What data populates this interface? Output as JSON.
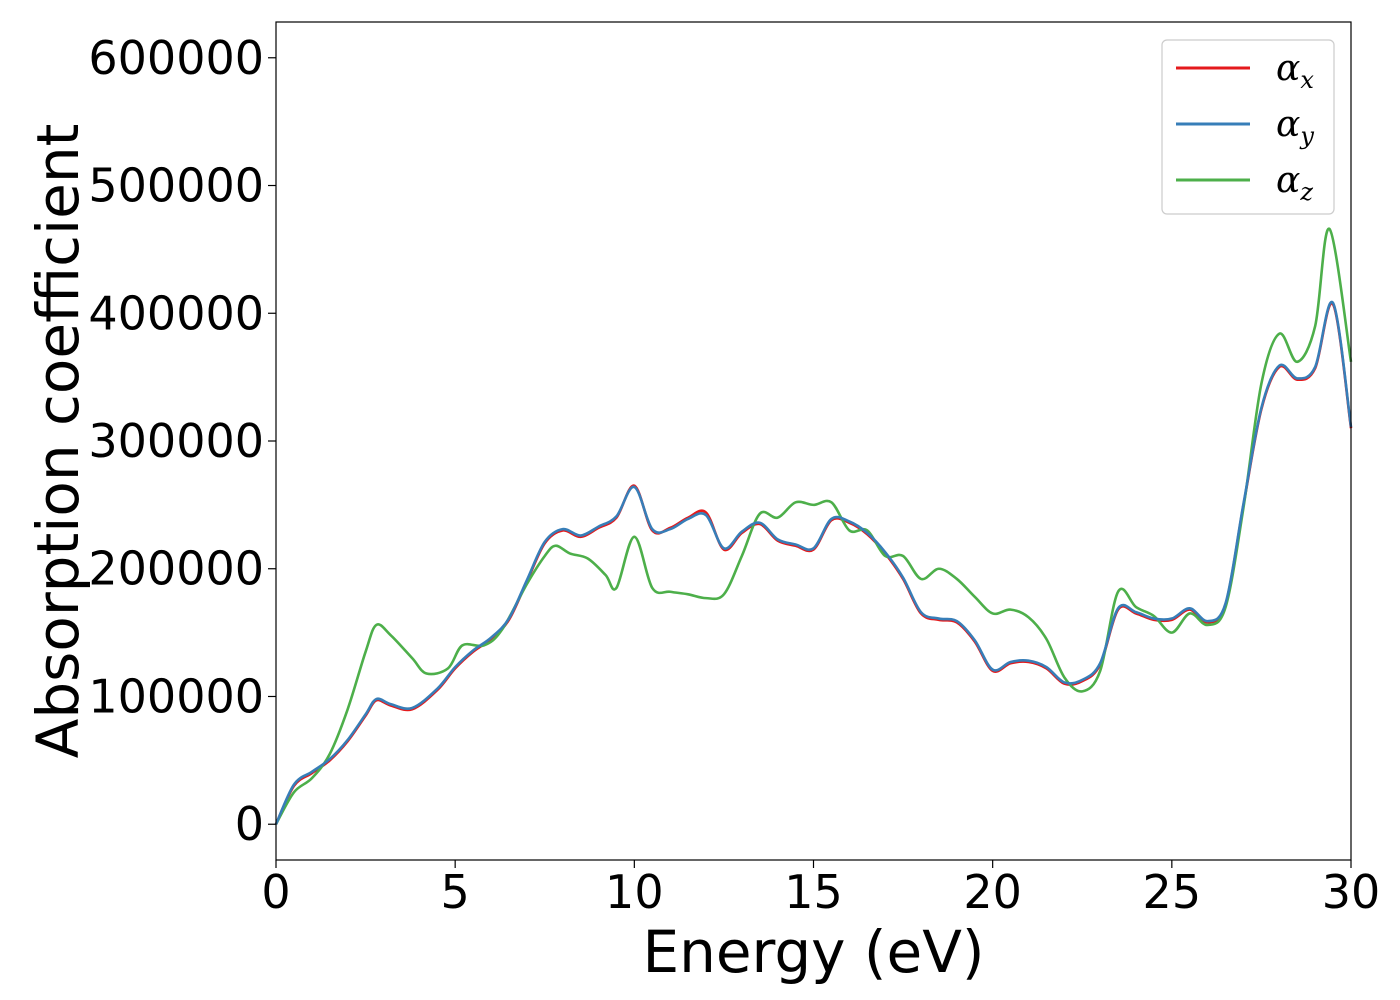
{
  "chart_data": {
    "type": "line",
    "title": "",
    "xlabel": "Energy (eV)",
    "ylabel": "Absorption coefficient",
    "xlim": [
      0,
      30
    ],
    "ylim": [
      -28000,
      628000
    ],
    "xticks": [
      0,
      5,
      10,
      15,
      20,
      25,
      30
    ],
    "yticks": [
      0,
      100000,
      200000,
      300000,
      400000,
      500000,
      600000
    ],
    "grid": false,
    "legend_position": "top-right",
    "series": [
      {
        "name": "α_x",
        "color": "#e41a1c",
        "x": [
          0,
          0.5,
          1,
          1.5,
          2,
          2.5,
          2.8,
          3.2,
          3.8,
          4.5,
          5,
          5.5,
          6,
          6.5,
          7,
          7.5,
          8,
          8.5,
          9,
          9.5,
          10,
          10.5,
          11,
          11.5,
          12,
          12.5,
          13,
          13.5,
          14,
          14.5,
          15,
          15.5,
          16,
          16.5,
          17,
          17.5,
          18,
          18.5,
          19,
          19.5,
          20,
          20.5,
          21,
          21.5,
          22,
          22.5,
          23,
          23.5,
          24,
          24.5,
          25,
          25.5,
          26,
          26.5,
          27,
          27.5,
          28,
          28.5,
          29,
          29.5,
          30
        ],
        "y": [
          0,
          30000,
          40000,
          50000,
          65000,
          85000,
          97000,
          93000,
          90000,
          105000,
          122000,
          135000,
          145000,
          160000,
          190000,
          220000,
          230000,
          225000,
          232000,
          240000,
          265000,
          230000,
          232000,
          240000,
          244000,
          215000,
          228000,
          235000,
          222000,
          218000,
          215000,
          238000,
          236000,
          227000,
          212000,
          192000,
          165000,
          160000,
          158000,
          143000,
          120000,
          126000,
          127000,
          122000,
          110000,
          112000,
          125000,
          168000,
          165000,
          160000,
          160000,
          168000,
          158000,
          172000,
          250000,
          325000,
          358000,
          348000,
          357000,
          407000,
          310000
        ]
      },
      {
        "name": "α_y",
        "color": "#377eb8",
        "x": [
          0,
          0.5,
          1,
          1.5,
          2,
          2.5,
          2.8,
          3.2,
          3.8,
          4.5,
          5,
          5.5,
          6,
          6.5,
          7,
          7.5,
          8,
          8.5,
          9,
          9.5,
          10,
          10.5,
          11,
          11.5,
          12,
          12.5,
          13,
          13.5,
          14,
          14.5,
          15,
          15.5,
          16,
          16.5,
          17,
          17.5,
          18,
          18.5,
          19,
          19.5,
          20,
          20.5,
          21,
          21.5,
          22,
          22.5,
          23,
          23.5,
          24,
          24.5,
          25,
          25.5,
          26,
          26.5,
          27,
          27.5,
          28,
          28.5,
          29,
          29.5,
          30
        ],
        "y": [
          0,
          31000,
          41000,
          51000,
          66000,
          86000,
          98000,
          94000,
          91000,
          106000,
          123000,
          136000,
          146000,
          161000,
          191000,
          221000,
          231000,
          226000,
          233000,
          241000,
          264000,
          231000,
          231000,
          239000,
          242000,
          216000,
          229000,
          236000,
          223000,
          219000,
          216000,
          239000,
          237000,
          228000,
          213000,
          193000,
          166000,
          161000,
          159000,
          144000,
          121000,
          127000,
          128000,
          123000,
          111000,
          113000,
          126000,
          169000,
          166000,
          161000,
          161000,
          169000,
          159000,
          173000,
          251000,
          326000,
          359000,
          349000,
          358000,
          408000,
          311000
        ]
      },
      {
        "name": "α_z",
        "color": "#4daf4a",
        "x": [
          0,
          0.5,
          1,
          1.5,
          2,
          2.5,
          2.8,
          3.2,
          3.8,
          4.2,
          4.8,
          5.2,
          5.8,
          6.3,
          7,
          7.5,
          7.8,
          8.2,
          8.7,
          9.2,
          9.5,
          10,
          10.5,
          11,
          11.5,
          12,
          12.5,
          13,
          13.5,
          14,
          14.5,
          15,
          15.5,
          16,
          16.5,
          17,
          17.5,
          18,
          18.5,
          19,
          19.5,
          20,
          20.5,
          21,
          21.5,
          22,
          22.5,
          23,
          23.5,
          24,
          24.5,
          25,
          25.5,
          26,
          26.5,
          27,
          27.5,
          28,
          28.5,
          29,
          29.4,
          30
        ],
        "y": [
          0,
          25000,
          36000,
          55000,
          90000,
          135000,
          156000,
          148000,
          130000,
          118000,
          122000,
          140000,
          140000,
          152000,
          188000,
          210000,
          218000,
          212000,
          208000,
          195000,
          185000,
          225000,
          185000,
          182000,
          180000,
          177000,
          180000,
          210000,
          243000,
          240000,
          252000,
          250000,
          252000,
          230000,
          230000,
          210000,
          210000,
          192000,
          200000,
          192000,
          178000,
          165000,
          168000,
          162000,
          145000,
          115000,
          104000,
          120000,
          182000,
          170000,
          163000,
          150000,
          165000,
          156000,
          170000,
          248000,
          345000,
          384000,
          362000,
          390000,
          466000,
          362000
        ]
      }
    ]
  }
}
